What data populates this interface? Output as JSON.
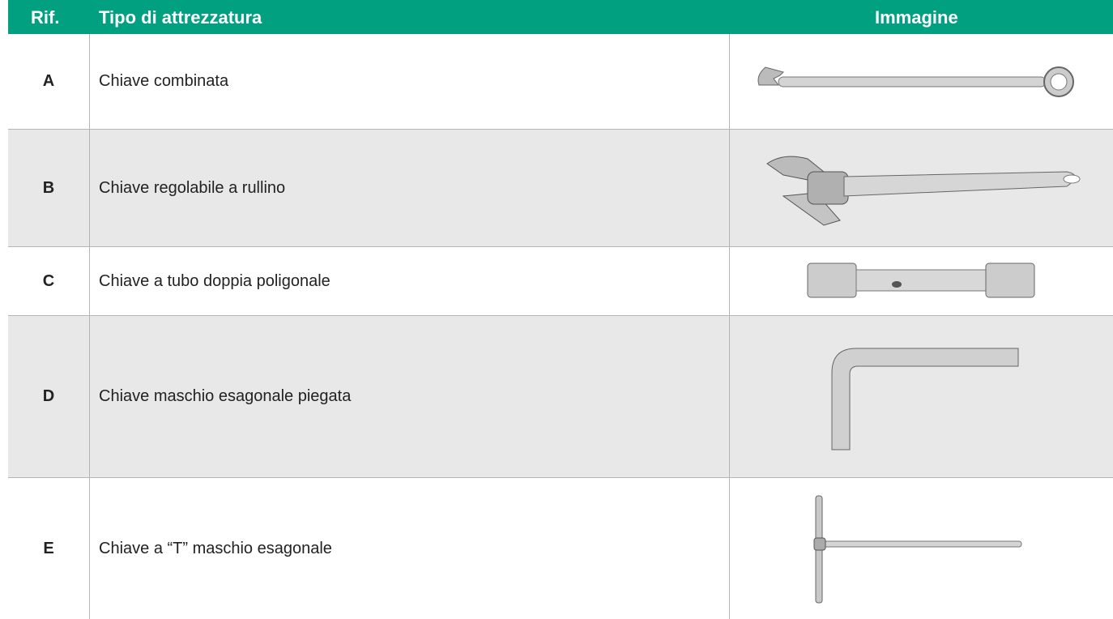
{
  "table": {
    "header": [
      "Rif.",
      "Tipo di attrezzatura",
      "Immagine"
    ],
    "rows": [
      [
        "A",
        "Chiave combinata"
      ],
      [
        "B",
        "Chiave regolabile a rullino"
      ],
      [
        "C",
        "Chiave a tubo doppia poligonale"
      ],
      [
        "D",
        "Chiave maschio esagonale piegata"
      ],
      [
        "E",
        "Chiave a “T” maschio esagonale"
      ]
    ]
  }
}
